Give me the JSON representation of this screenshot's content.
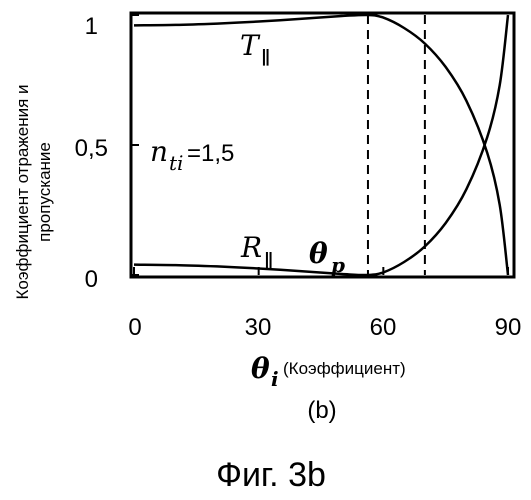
{
  "chart_data": {
    "type": "line",
    "ylabel_line1": "Коэффициент отражения и",
    "ylabel_line2": "пропускание",
    "xlabel_symbol": "θ",
    "xlabel_subscript": "i",
    "xlabel_text": "(Коэффициент)",
    "xlim": [
      0,
      90
    ],
    "ylim": [
      0,
      1
    ],
    "xticks": [
      0,
      30,
      60,
      90
    ],
    "yticks": [
      0,
      0.5,
      1
    ],
    "xtick_labels": [
      "0",
      "30",
      "60",
      "90"
    ],
    "ytick_labels": [
      "0",
      "0,5",
      "1"
    ],
    "grid": false,
    "series": [
      {
        "name": "T∥",
        "x": [
          0,
          10,
          20,
          30,
          40,
          50,
          56.3,
          60,
          65,
          70,
          75,
          80,
          85,
          88,
          90
        ],
        "y": [
          0.96,
          0.962,
          0.967,
          0.975,
          0.985,
          0.996,
          1.0,
          0.99,
          0.95,
          0.89,
          0.8,
          0.67,
          0.47,
          0.27,
          0.0
        ]
      },
      {
        "name": "R∥",
        "x": [
          0,
          10,
          20,
          30,
          40,
          50,
          56.3,
          60,
          65,
          70,
          75,
          80,
          85,
          88,
          90
        ],
        "y": [
          0.04,
          0.038,
          0.033,
          0.025,
          0.015,
          0.004,
          0.0,
          0.01,
          0.05,
          0.11,
          0.2,
          0.33,
          0.53,
          0.73,
          1.0
        ]
      }
    ],
    "vlines": [
      56.3,
      70
    ],
    "annotations": {
      "T_main": "T",
      "T_sub": "∥",
      "R_main": "R",
      "R_sub": "∥",
      "theta_p_main": "θ",
      "theta_p_sub": "p",
      "n_main": "n",
      "n_sub": "ti",
      "n_value": "=1,5"
    }
  },
  "panel_label": "(b)",
  "figure_caption": "Фиг. 3b"
}
